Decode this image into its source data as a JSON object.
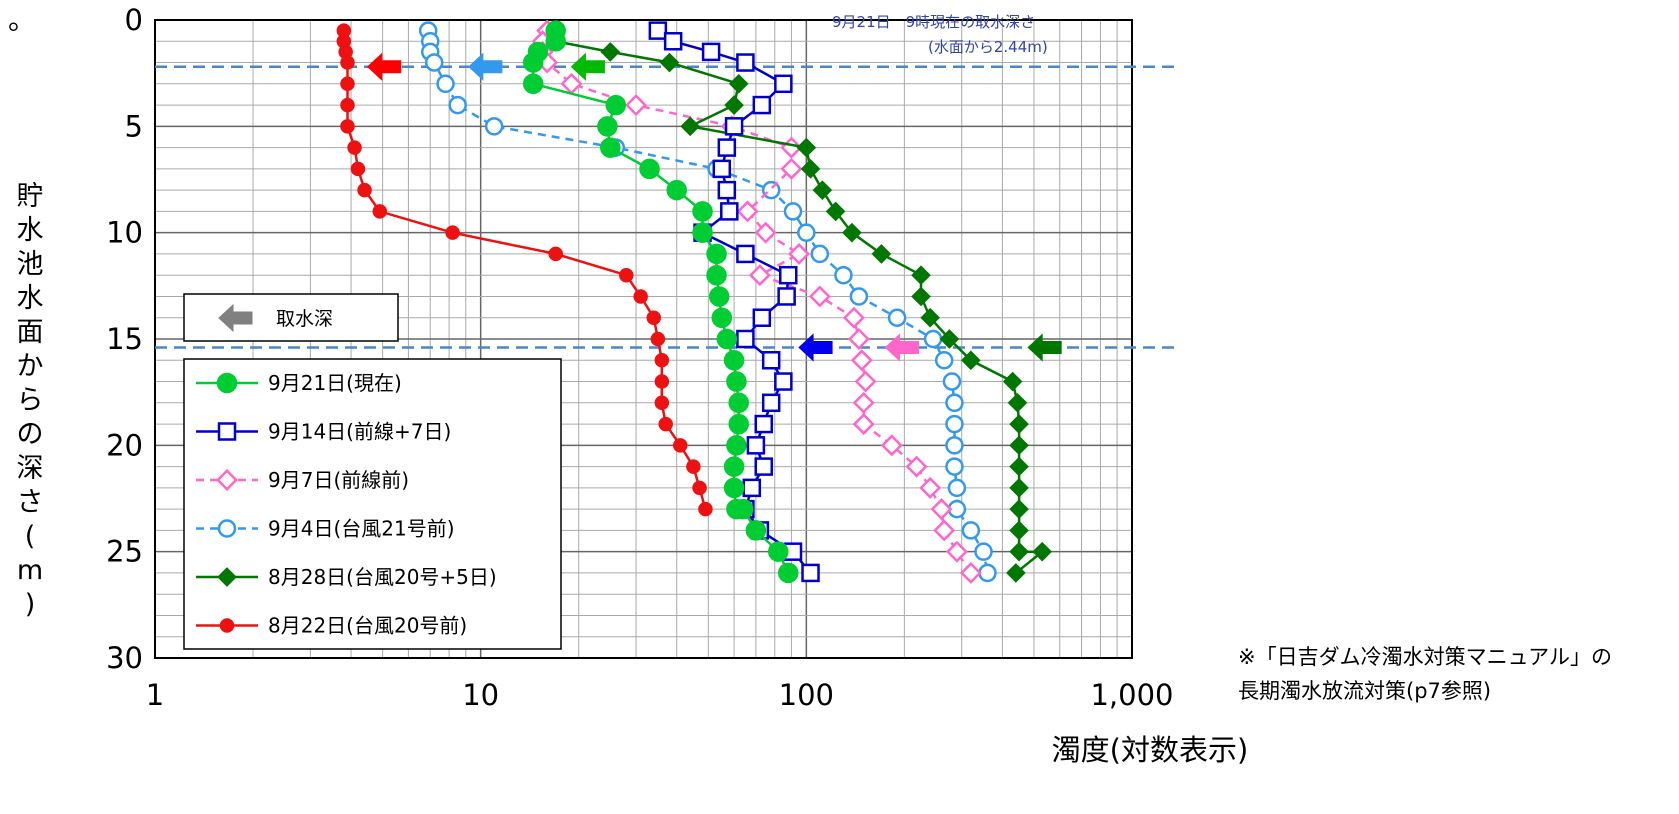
{
  "corner_mark": "。",
  "note": {
    "line1": "※「日吉ダム冷濁水対策マニュアル」の",
    "line2": "長期濁水放流対策(p7参照)"
  },
  "chart_data": {
    "type": "line",
    "xlabel": "濁度(対数表示)",
    "ylabel": "貯水池水面からの深さ(m)",
    "x_scale": "log",
    "xlim": [
      1,
      1000
    ],
    "ylim": [
      0,
      30
    ],
    "y_inverted": true,
    "grid": true,
    "x_ticks": [
      {
        "value": 1,
        "label": "1"
      },
      {
        "value": 10,
        "label": "10"
      },
      {
        "value": 100,
        "label": "100"
      },
      {
        "value": 1000,
        "label": "1,000"
      }
    ],
    "y_ticks": [
      {
        "value": 0,
        "label": "0"
      },
      {
        "value": 5,
        "label": "5"
      },
      {
        "value": 10,
        "label": "10"
      },
      {
        "value": 15,
        "label": "15"
      },
      {
        "value": 20,
        "label": "20"
      },
      {
        "value": 25,
        "label": "25"
      },
      {
        "value": 30,
        "label": "30"
      }
    ],
    "annotation": {
      "line1": "9月21日　9時現在の取水深さ",
      "line2": "(水面から2.44m)"
    },
    "intake_lines": [
      2.2,
      15.4
    ],
    "intake_legend_label": "取水深",
    "intake_arrows": [
      {
        "x": 4.5,
        "y": 2.2,
        "color": "#ff0000"
      },
      {
        "x": 9.2,
        "y": 2.2,
        "color": "#3399ee"
      },
      {
        "x": 19,
        "y": 2.2,
        "color": "#00bb00"
      },
      {
        "x": 95,
        "y": 15.4,
        "color": "#0000ee"
      },
      {
        "x": 175,
        "y": 15.4,
        "color": "#ff66cc"
      },
      {
        "x": 480,
        "y": 15.4,
        "color": "#007700"
      }
    ],
    "legend_arrow_color": "#808080",
    "series": [
      {
        "name": "9月21日(現在)",
        "color": "#00cc33",
        "marker": "circle",
        "filled": true,
        "dash": false,
        "x": [
          17,
          17,
          15,
          14.5,
          14.5,
          26,
          24.5,
          25,
          33,
          40,
          48,
          48,
          53,
          53,
          54,
          55,
          57,
          60,
          61,
          62,
          62,
          61,
          60,
          60,
          61,
          64,
          70,
          82,
          88
        ],
        "y": [
          0.5,
          1,
          1.5,
          2,
          3,
          4,
          5,
          6,
          7,
          8,
          9,
          10,
          11,
          12,
          13,
          14,
          15,
          16,
          17,
          18,
          19,
          20,
          21,
          22,
          23,
          23,
          24,
          25,
          26
        ]
      },
      {
        "name": "9月14日(前線+7日)",
        "color": "#0000cc",
        "marker": "square",
        "filled": false,
        "dash": false,
        "x": [
          35,
          39,
          51,
          65,
          85,
          73,
          60,
          57,
          55,
          57,
          58,
          48,
          65,
          88,
          87,
          73,
          65,
          78,
          85,
          78,
          74,
          70,
          74,
          68,
          65,
          72,
          91,
          103
        ],
        "y": [
          0.5,
          1,
          1.5,
          2,
          3,
          4,
          5,
          6,
          7,
          8,
          9,
          10,
          11,
          12,
          13,
          14,
          15,
          16,
          17,
          18,
          19,
          20,
          21,
          22,
          23,
          24,
          25,
          26
        ]
      },
      {
        "name": "9月7日(前線前)",
        "color": "#ff66cc",
        "marker": "diamond",
        "filled": false,
        "dash": true,
        "x": [
          16,
          15.5,
          15.5,
          16,
          19,
          30,
          59,
          90,
          90,
          66,
          75,
          95,
          72,
          110,
          140,
          145,
          148,
          152,
          150,
          150,
          150,
          183,
          218,
          240,
          260,
          265,
          290,
          320
        ],
        "y": [
          0.5,
          1,
          1.5,
          2,
          3,
          4,
          5,
          6,
          7,
          9,
          10,
          11,
          12,
          13,
          14,
          15,
          16,
          17,
          18,
          19,
          19,
          20,
          21,
          22,
          23,
          24,
          25,
          26
        ]
      },
      {
        "name": "9月4日(台風21号前)",
        "color": "#3399ee",
        "marker": "circle",
        "filled": false,
        "dash": true,
        "x": [
          6.9,
          7.0,
          7.0,
          7.2,
          7.8,
          8.5,
          11,
          26,
          53,
          78,
          91,
          100,
          110,
          130,
          145,
          190,
          245,
          265,
          280,
          285,
          285,
          285,
          285,
          290,
          290,
          320,
          350,
          360
        ],
        "y": [
          0.5,
          1,
          1.5,
          2,
          3,
          4,
          5,
          6,
          7,
          8,
          9,
          10,
          11,
          12,
          13,
          14,
          15,
          16,
          17,
          18,
          19,
          20,
          21,
          22,
          23,
          24,
          25,
          26
        ]
      },
      {
        "name": "8月28日(台風20号+5日)",
        "color": "#007700",
        "marker": "diamond",
        "filled": true,
        "dash": false,
        "x": [
          17,
          17,
          25,
          38,
          62,
          60,
          44,
          100,
          103,
          112,
          123,
          138,
          170,
          225,
          225,
          240,
          275,
          320,
          430,
          445,
          450,
          450,
          450,
          450,
          450,
          450,
          450,
          530,
          440
        ],
        "y": [
          0.5,
          1,
          1.5,
          2,
          3,
          4,
          5,
          6,
          7,
          8,
          9,
          10,
          11,
          12,
          13,
          14,
          15,
          16,
          17,
          18,
          19,
          20,
          21,
          22,
          23,
          24,
          25,
          25,
          26
        ]
      },
      {
        "name": "8月22日(台風20号前)",
        "color": "#ee1111",
        "marker": "circle",
        "filled": true,
        "dash": false,
        "x": [
          3.8,
          3.8,
          3.85,
          3.9,
          3.9,
          3.9,
          3.9,
          4.1,
          4.2,
          4.4,
          4.9,
          8.2,
          17,
          28,
          31,
          34,
          35,
          36,
          36,
          36,
          37,
          41,
          45,
          47,
          49
        ],
        "y": [
          0.5,
          1,
          1.5,
          2,
          3,
          4,
          5,
          6,
          7,
          8,
          9,
          10,
          11,
          12,
          13,
          14,
          15,
          16,
          17,
          18,
          19,
          20,
          21,
          22,
          23
        ]
      }
    ]
  }
}
